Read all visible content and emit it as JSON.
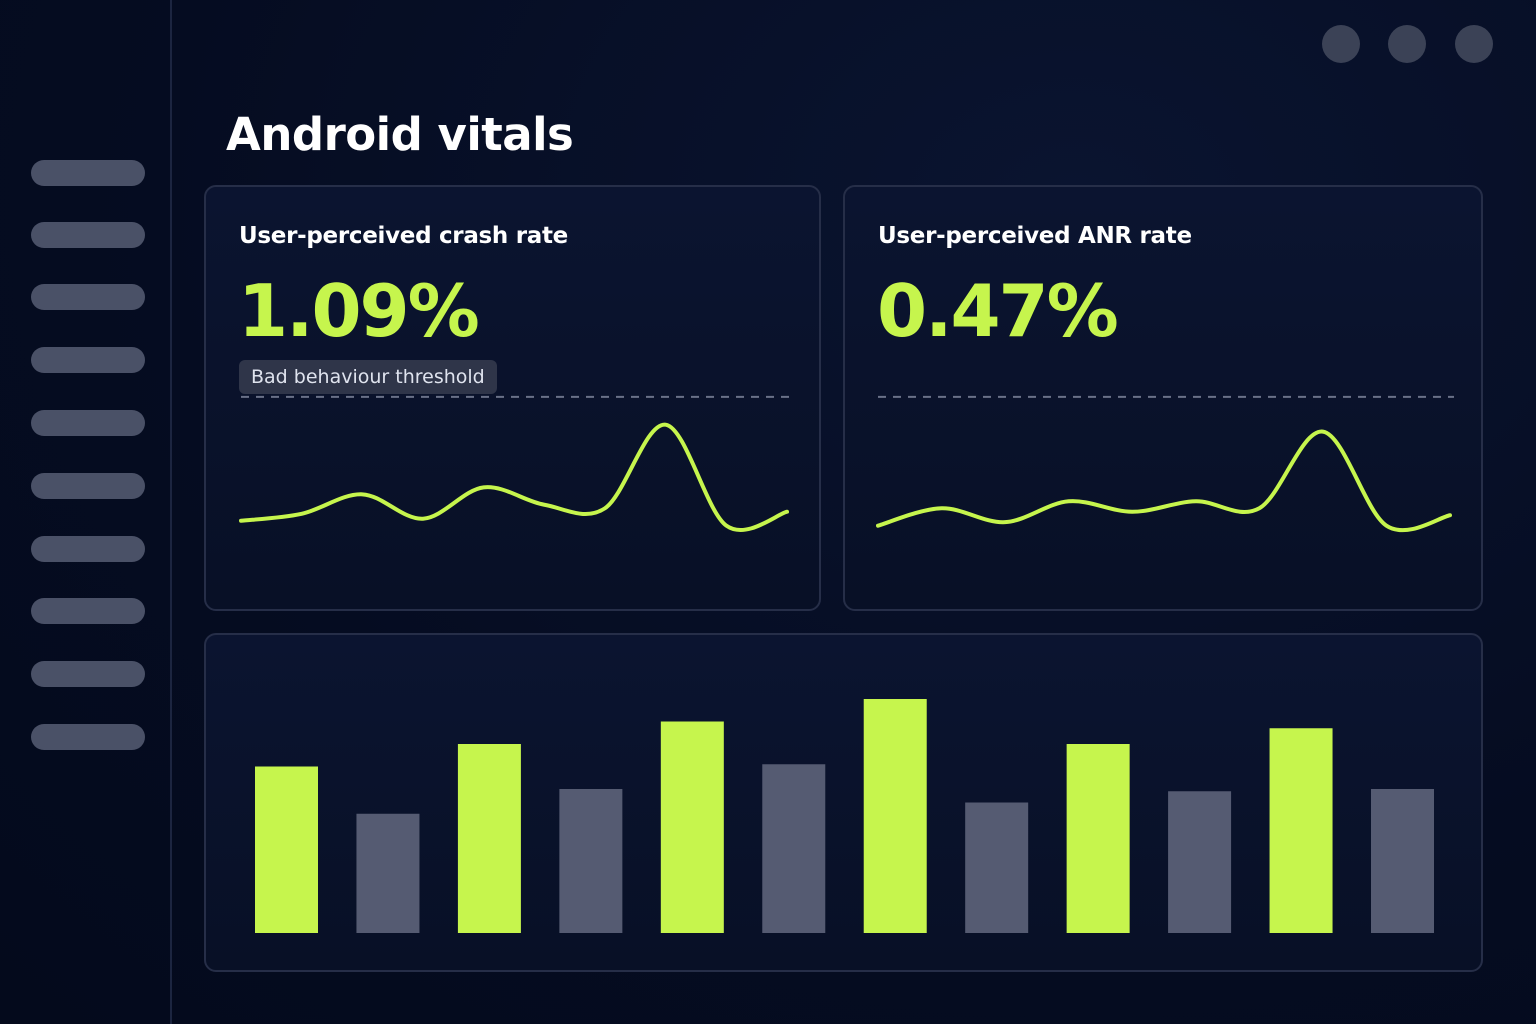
{
  "page": {
    "title": "Android vitals"
  },
  "colors": {
    "background": "#050c21",
    "accent": "#c6f54d",
    "muted_bar": "#555b72",
    "card_border": "#262e48",
    "nav_pill": "#4a5167"
  },
  "sidebar": {
    "item_count": 10
  },
  "window_controls": [
    "circle-button",
    "circle-button",
    "circle-button"
  ],
  "cards": {
    "crash": {
      "title": "User-perceived crash rate",
      "value": "1.09%",
      "threshold_label": "Bad behaviour threshold"
    },
    "anr": {
      "title": "User-perceived ANR rate",
      "value": "0.47%"
    }
  },
  "chart_data": [
    {
      "type": "line",
      "series": [
        {
          "values": [
            0.52,
            0.62,
            0.9,
            0.55,
            1.0,
            0.75,
            0.7,
            1.9,
            0.45,
            0.65
          ]
        }
      ],
      "threshold": 2.3,
      "ylim": [
        0,
        2.8
      ]
    },
    {
      "type": "line",
      "series": [
        {
          "values": [
            0.45,
            0.7,
            0.5,
            0.8,
            0.65,
            0.8,
            0.7,
            1.8,
            0.45,
            0.6
          ]
        }
      ],
      "threshold": 2.3,
      "ylim": [
        0,
        2.8
      ]
    },
    {
      "type": "bar",
      "values": [
        7.4,
        5.3,
        8.4,
        6.4,
        9.4,
        7.5,
        10.4,
        5.8,
        8.4,
        6.3,
        9.1,
        6.4
      ],
      "highlighted": [
        true,
        false,
        true,
        false,
        true,
        false,
        true,
        false,
        true,
        false,
        true,
        false
      ],
      "ylim": [
        0,
        12
      ]
    }
  ]
}
